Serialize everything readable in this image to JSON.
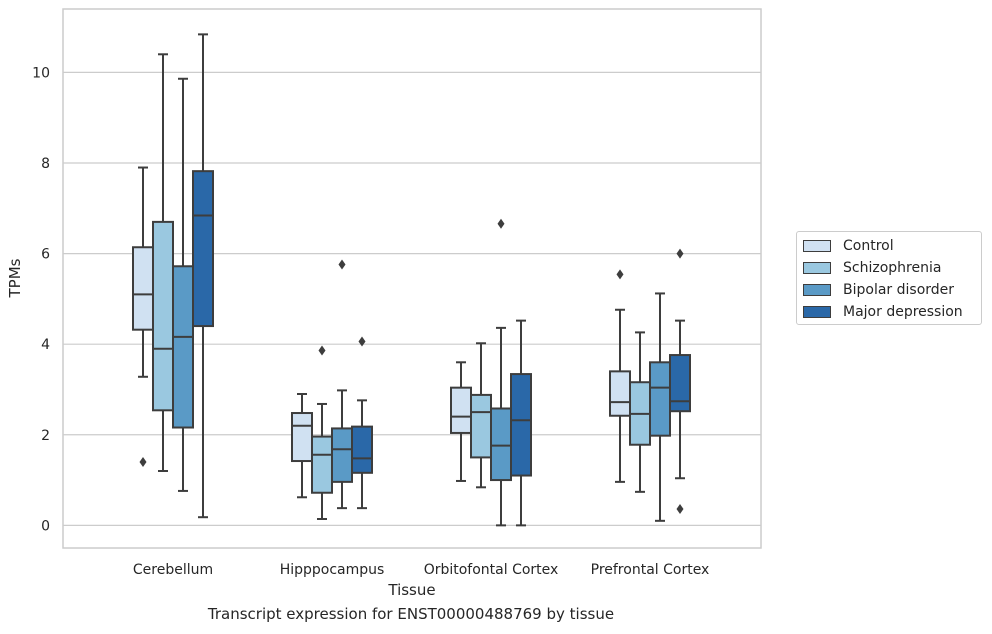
{
  "caption": "Transcript expression for ENST00000488769 by tissue",
  "chart_data": {
    "type": "box",
    "xlabel": "Tissue",
    "ylabel": "TPMs",
    "ylim": [
      -0.5,
      11.4
    ],
    "yticks": [
      0,
      2,
      4,
      6,
      8,
      10
    ],
    "grid": "horizontal",
    "legend_position": "right",
    "categories": [
      "Cerebellum",
      "Hipppocampus",
      "Orbitofontal Cortex",
      "Prefrontal Cortex"
    ],
    "series": [
      {
        "name": "Control",
        "color": "#d0e1f2",
        "boxes": [
          {
            "whisker_low": 3.28,
            "q1": 4.32,
            "median": 5.1,
            "q3": 6.14,
            "whisker_high": 7.9,
            "outliers": [
              1.4
            ]
          },
          {
            "whisker_low": 0.62,
            "q1": 1.42,
            "median": 2.2,
            "q3": 2.48,
            "whisker_high": 2.9,
            "outliers": []
          },
          {
            "whisker_low": 0.98,
            "q1": 2.04,
            "median": 2.4,
            "q3": 3.04,
            "whisker_high": 3.6,
            "outliers": []
          },
          {
            "whisker_low": 0.96,
            "q1": 2.42,
            "median": 2.72,
            "q3": 3.4,
            "whisker_high": 4.76,
            "outliers": [
              5.54
            ]
          }
        ]
      },
      {
        "name": "Schizophrenia",
        "color": "#9ac8e0",
        "boxes": [
          {
            "whisker_low": 1.2,
            "q1": 2.54,
            "median": 3.9,
            "q3": 6.7,
            "whisker_high": 10.4,
            "outliers": []
          },
          {
            "whisker_low": 0.14,
            "q1": 0.72,
            "median": 1.56,
            "q3": 1.96,
            "whisker_high": 2.68,
            "outliers": [
              3.86
            ]
          },
          {
            "whisker_low": 0.84,
            "q1": 1.5,
            "median": 2.5,
            "q3": 2.88,
            "whisker_high": 4.02,
            "outliers": []
          },
          {
            "whisker_low": 0.74,
            "q1": 1.78,
            "median": 2.46,
            "q3": 3.16,
            "whisker_high": 4.26,
            "outliers": []
          }
        ]
      },
      {
        "name": "Bipolar disorder",
        "color": "#5a9ac6",
        "boxes": [
          {
            "whisker_low": 0.76,
            "q1": 2.16,
            "median": 4.16,
            "q3": 5.72,
            "whisker_high": 9.86,
            "outliers": []
          },
          {
            "whisker_low": 0.38,
            "q1": 0.96,
            "median": 1.68,
            "q3": 2.14,
            "whisker_high": 2.98,
            "outliers": [
              5.76
            ]
          },
          {
            "whisker_low": 0.0,
            "q1": 1.0,
            "median": 1.76,
            "q3": 2.58,
            "whisker_high": 4.36,
            "outliers": [
              6.66
            ]
          },
          {
            "whisker_low": 0.1,
            "q1": 1.98,
            "median": 3.04,
            "q3": 3.6,
            "whisker_high": 5.12,
            "outliers": []
          }
        ]
      },
      {
        "name": "Major depression",
        "color": "#2a68a8",
        "boxes": [
          {
            "whisker_low": 0.18,
            "q1": 4.4,
            "median": 6.84,
            "q3": 7.82,
            "whisker_high": 10.84,
            "outliers": []
          },
          {
            "whisker_low": 0.38,
            "q1": 1.16,
            "median": 1.48,
            "q3": 2.18,
            "whisker_high": 2.76,
            "outliers": [
              4.06
            ]
          },
          {
            "whisker_low": 0.0,
            "q1": 1.1,
            "median": 2.32,
            "q3": 3.34,
            "whisker_high": 4.52,
            "outliers": []
          },
          {
            "whisker_low": 1.04,
            "q1": 2.52,
            "median": 2.74,
            "q3": 3.76,
            "whisker_high": 4.52,
            "outliers": [
              6.0,
              0.36
            ]
          }
        ]
      }
    ]
  }
}
